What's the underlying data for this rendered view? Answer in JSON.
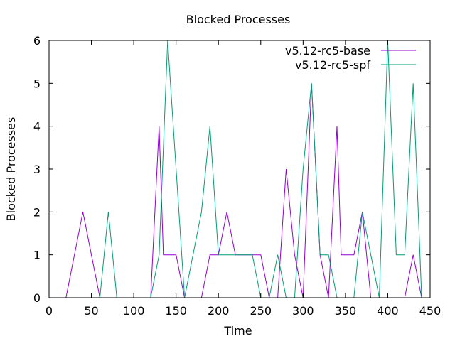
{
  "chart_data": {
    "type": "line",
    "title": "Blocked Processes",
    "xlabel": "Time",
    "ylabel": "Blocked Processes",
    "xlim": [
      0,
      450
    ],
    "ylim": [
      0,
      6
    ],
    "xticks": [
      0,
      50,
      100,
      150,
      200,
      250,
      300,
      350,
      400,
      450
    ],
    "yticks": [
      0,
      1,
      2,
      3,
      4,
      5,
      6
    ],
    "legend_position": "top-right",
    "grid": false,
    "series": [
      {
        "name": "v5.12-rc5-base",
        "color": "#9400d3",
        "x": [
          20,
          40,
          60,
          120,
          130,
          135,
          140,
          150,
          160,
          180,
          190,
          200,
          210,
          220,
          230,
          240,
          250,
          260,
          270,
          280,
          290,
          300,
          310,
          320,
          330,
          340,
          345,
          350,
          360,
          370,
          380,
          390,
          400,
          410,
          420,
          430,
          440
        ],
        "y": [
          0,
          2,
          0,
          0,
          4,
          1,
          1,
          1,
          0,
          0,
          1,
          1,
          2,
          1,
          1,
          1,
          1,
          0,
          0,
          3,
          1,
          0,
          5,
          1,
          0,
          4,
          1,
          1,
          1,
          2,
          0,
          0,
          0,
          0,
          0,
          1,
          0
        ]
      },
      {
        "name": "v5.12-rc5-spf",
        "color": "#009e73",
        "x": [
          60,
          70,
          80,
          120,
          130,
          140,
          150,
          160,
          170,
          180,
          190,
          200,
          210,
          220,
          230,
          240,
          250,
          260,
          270,
          280,
          290,
          300,
          310,
          320,
          330,
          340,
          350,
          360,
          370,
          380,
          390,
          400,
          410,
          420,
          430,
          440
        ],
        "y": [
          0,
          2,
          0,
          0,
          1,
          6,
          3,
          0,
          1,
          2,
          4,
          1,
          1,
          1,
          1,
          1,
          0,
          0,
          1,
          0,
          0,
          3,
          5,
          1,
          1,
          0,
          0,
          0,
          2,
          1,
          0,
          6,
          1,
          1,
          5,
          0
        ]
      }
    ]
  }
}
